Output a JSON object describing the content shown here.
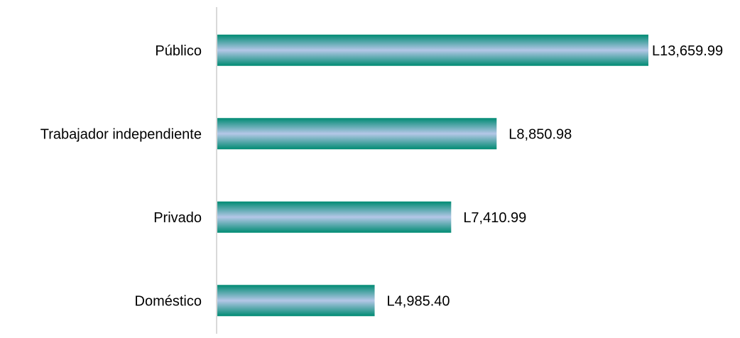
{
  "chart_data": {
    "type": "bar",
    "orientation": "horizontal",
    "categories": [
      "Público",
      "Trabajador independiente",
      "Privado",
      "Doméstico"
    ],
    "values": [
      13659.99,
      8850.98,
      7410.99,
      4985.4
    ],
    "value_labels": [
      "L13,659.99",
      "L8,850.98",
      "L7,410.99",
      "L4,985.40"
    ],
    "title": "",
    "xlabel": "",
    "ylabel": "",
    "xlim": [
      0,
      13659.99
    ],
    "grid": false,
    "legend": "none",
    "colors": {
      "bar_edge": "#008b73",
      "bar_mid": "#b4c7e7",
      "axis": "#d9d9d9",
      "text": "#000000"
    }
  }
}
